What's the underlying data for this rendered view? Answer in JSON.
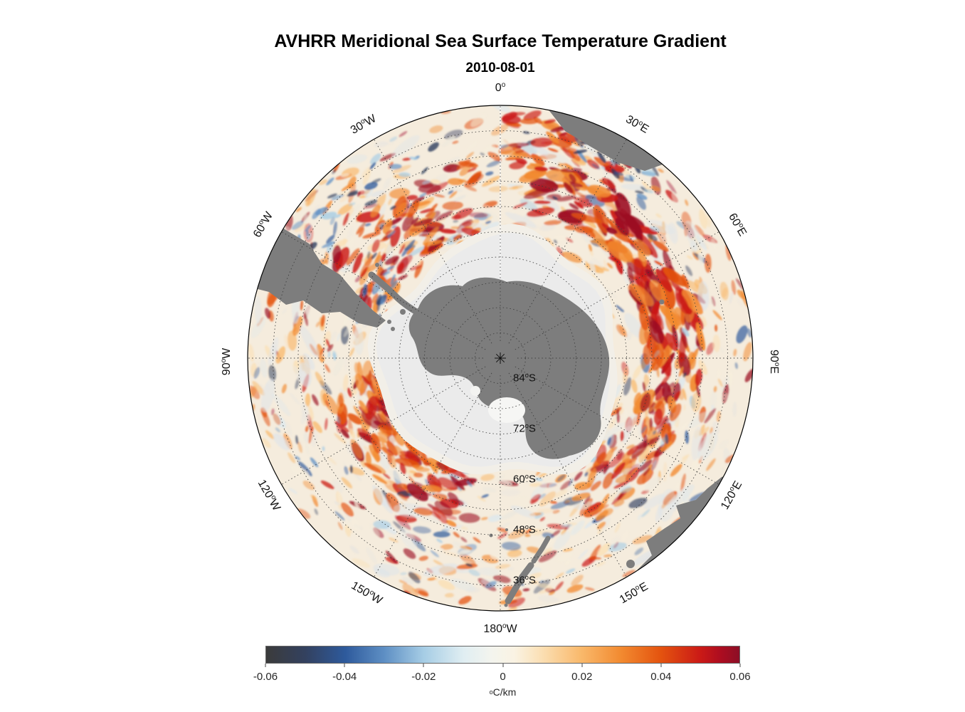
{
  "figure": {
    "title": "AVHRR Meridional Sea Surface Temperature Gradient",
    "subtitle": "2010-08-01"
  },
  "chart_data": {
    "type": "heatmap",
    "title": "AVHRR Meridional Sea Surface Temperature Gradient",
    "subtitle": "2010-08-01",
    "projection": "south polar stereographic",
    "units": "°C/km",
    "value_range": [
      -0.06,
      0.06
    ],
    "meridian_labels": [
      {
        "azimuth_deg": 0,
        "label": "0°"
      },
      {
        "azimuth_deg": 30,
        "label": "30°E"
      },
      {
        "azimuth_deg": 60,
        "label": "60°E"
      },
      {
        "azimuth_deg": 90,
        "label": "90°E"
      },
      {
        "azimuth_deg": 120,
        "label": "120°E"
      },
      {
        "azimuth_deg": 150,
        "label": "150°E"
      },
      {
        "azimuth_deg": 180,
        "label": "180°W"
      },
      {
        "azimuth_deg": 210,
        "label": "150°W"
      },
      {
        "azimuth_deg": 240,
        "label": "120°W"
      },
      {
        "azimuth_deg": 270,
        "label": "90°W"
      },
      {
        "azimuth_deg": 300,
        "label": "60°W"
      },
      {
        "azimuth_deg": 330,
        "label": "30°W"
      }
    ],
    "parallel_labels": [
      {
        "latitude_deg": -84,
        "label": "84°S"
      },
      {
        "latitude_deg": -72,
        "label": "72°S"
      },
      {
        "latitude_deg": -60,
        "label": "60°S"
      },
      {
        "latitude_deg": -48,
        "label": "48°S"
      },
      {
        "latitude_deg": -36,
        "label": "36°S"
      }
    ],
    "graticule": {
      "parallels_deg": [
        -84,
        -78,
        -72,
        -66,
        -60,
        -54,
        -48,
        -42,
        -36
      ],
      "meridian_step_deg": 30,
      "outer_latitude_deg": -30
    },
    "colorbar": {
      "label": "°C/km",
      "orientation": "horizontal",
      "ticks": [
        -0.06,
        -0.04,
        -0.02,
        0,
        0.02,
        0.04,
        0.06
      ],
      "tick_labels": [
        "-0.06",
        "-0.04",
        "-0.02",
        "0",
        "0.02",
        "0.04",
        "0.06"
      ],
      "gradient_stops": [
        {
          "pos": 0.0,
          "color": "#3b3b3b"
        },
        {
          "pos": 0.083,
          "color": "#33415f"
        },
        {
          "pos": 0.167,
          "color": "#2e5a9c"
        },
        {
          "pos": 0.25,
          "color": "#5e8fc4"
        },
        {
          "pos": 0.333,
          "color": "#a6cde5"
        },
        {
          "pos": 0.417,
          "color": "#e0eef2"
        },
        {
          "pos": 0.475,
          "color": "#f3f4ee"
        },
        {
          "pos": 0.525,
          "color": "#faf3e3"
        },
        {
          "pos": 0.583,
          "color": "#fbdfb3"
        },
        {
          "pos": 0.667,
          "color": "#f9b86a"
        },
        {
          "pos": 0.75,
          "color": "#f28a30"
        },
        {
          "pos": 0.833,
          "color": "#e4540f"
        },
        {
          "pos": 0.917,
          "color": "#cb1a16"
        },
        {
          "pos": 0.96,
          "color": "#ad0d20"
        },
        {
          "pos": 1.0,
          "color": "#8c0e26"
        }
      ]
    },
    "field_palette": {
      "base_ocean": "#f5ecdd",
      "ice_zone": "#ebebeb",
      "ice_fringe": "#f2efe8",
      "land": "#7d7d7d",
      "warm": [
        "#fbdfb3",
        "#f9b86a",
        "#f28a30",
        "#e4540f",
        "#cb1a16",
        "#9c0e22"
      ],
      "cool": [
        "#dce8ef",
        "#a6cde5",
        "#5e8fc4",
        "#2e5a9c",
        "#2b3a5c"
      ],
      "neutral": [
        "#f6eedd",
        "#efe9dd",
        "#e9e6df"
      ]
    },
    "map_features": [
      "Antarctica",
      "South America",
      "Africa",
      "Australia",
      "New Zealand"
    ]
  }
}
